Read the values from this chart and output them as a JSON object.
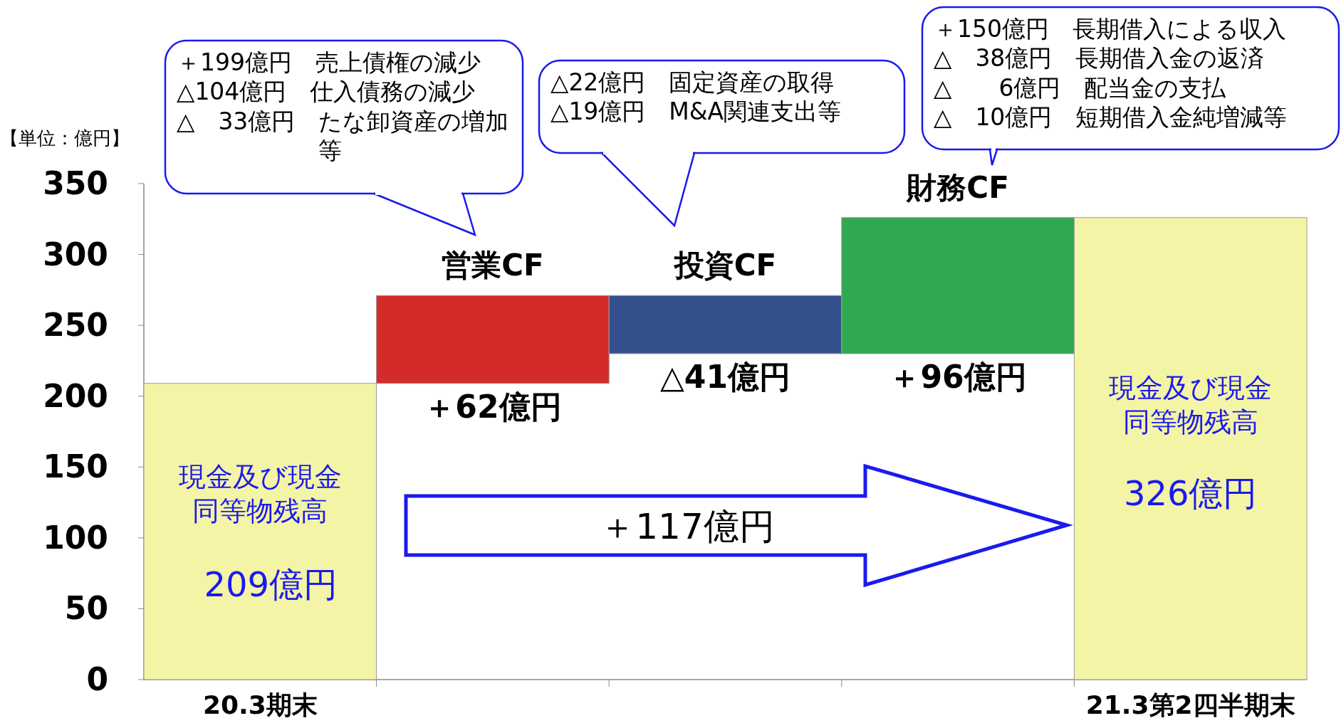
{
  "chart_data": {
    "type": "bar",
    "categories": [
      "20.3期末",
      "営業CF",
      "投資CF",
      "財務CF",
      "21.3第2四半期末"
    ],
    "values": [
      209,
      62,
      -41,
      96,
      326
    ],
    "base": [
      0,
      209,
      271,
      230,
      0
    ],
    "colors": [
      "#f4f4a6",
      "#d42a2a",
      "#34508c",
      "#2fa84f",
      "#f4f4a6"
    ],
    "value_labels": [
      "209億円",
      "＋62億円",
      "△41億円",
      "＋96億円",
      "326億円"
    ],
    "ylim": [
      0,
      350
    ],
    "yticks": [
      0,
      50,
      100,
      150,
      200,
      250,
      300,
      350
    ],
    "grid": false,
    "annotations": [
      "【単位：億円】",
      "＋199億円　売上債権の減少\n△104億円　仕入債務の減少\n△　33億円　たな卸資産の増加等",
      "△22億円　固定資産の取得\n△19億円　M&A関連支出等",
      "＋150億円　長期借入による収入\n△　38億円　長期借入金の返済\n△　　6億円　配当金の支払\n△　10億円　短期借入金純増減等",
      "現金及び現金同等物残高",
      "現金及び現金同等物残高",
      "＋117億円"
    ]
  }
}
